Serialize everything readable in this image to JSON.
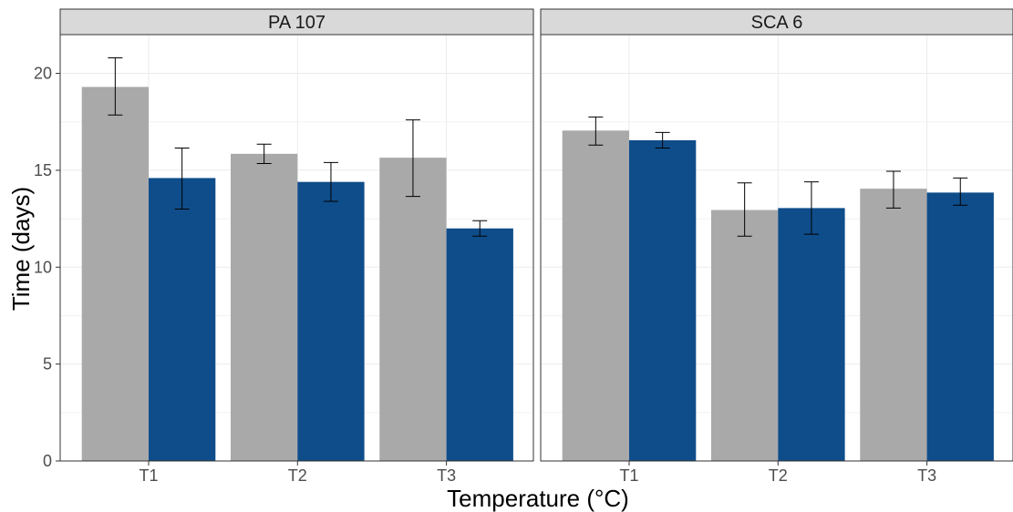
{
  "chart_data": {
    "type": "bar",
    "xlabel": "Temperature (°C)",
    "ylabel": "Time (days)",
    "ylim": [
      0,
      22
    ],
    "yticks": [
      0,
      5,
      10,
      15,
      20
    ],
    "categories": [
      "T1",
      "T2",
      "T3"
    ],
    "grid": true,
    "legend": "none",
    "colors": {
      "series1": "#a9a9a9",
      "series2": "#0f4d8a"
    },
    "panels": [
      {
        "title": "PA 107",
        "series": [
          {
            "values": [
              19.3,
              15.85,
              15.65
            ],
            "err_low": [
              17.85,
              15.35,
              13.65
            ],
            "err_high": [
              20.8,
              16.35,
              17.6
            ]
          },
          {
            "values": [
              14.6,
              14.4,
              12.0
            ],
            "err_low": [
              13.0,
              13.4,
              11.6
            ],
            "err_high": [
              16.15,
              15.4,
              12.4
            ]
          }
        ]
      },
      {
        "title": "SCA 6",
        "series": [
          {
            "values": [
              17.05,
              12.95,
              14.05
            ],
            "err_low": [
              16.3,
              11.6,
              13.05
            ],
            "err_high": [
              17.75,
              14.35,
              14.95
            ]
          },
          {
            "values": [
              16.55,
              13.05,
              13.85
            ],
            "err_low": [
              16.15,
              11.7,
              13.2
            ],
            "err_high": [
              16.95,
              14.4,
              14.6
            ]
          }
        ]
      }
    ]
  }
}
